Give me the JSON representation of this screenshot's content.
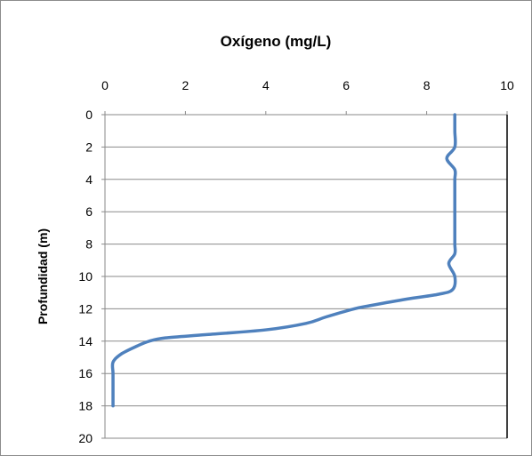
{
  "chart_data": {
    "type": "line",
    "title": "Oxígeno (mg/L)",
    "xlabel": "",
    "ylabel": "Profundidad (m)",
    "xlim": [
      0,
      10
    ],
    "ylim": [
      0,
      20
    ],
    "y_inverted": true,
    "x_axis_position": "top",
    "x_ticks": [
      "0",
      "2",
      "4",
      "6",
      "8",
      "10"
    ],
    "y_ticks": [
      "0",
      "2",
      "4",
      "6",
      "8",
      "10",
      "12",
      "14",
      "16",
      "18",
      "20"
    ],
    "grid": "horizontal",
    "legend": "none",
    "series_color": "#4F81BD",
    "series": [
      {
        "points": [
          {
            "x": 8.7,
            "y": 0
          },
          {
            "x": 8.7,
            "y": 1
          },
          {
            "x": 8.7,
            "y": 2
          },
          {
            "x": 8.5,
            "y": 2.7
          },
          {
            "x": 8.7,
            "y": 3.4
          },
          {
            "x": 8.7,
            "y": 4
          },
          {
            "x": 8.7,
            "y": 5
          },
          {
            "x": 8.7,
            "y": 6
          },
          {
            "x": 8.7,
            "y": 7
          },
          {
            "x": 8.7,
            "y": 8
          },
          {
            "x": 8.7,
            "y": 8.6
          },
          {
            "x": 8.55,
            "y": 9.2
          },
          {
            "x": 8.7,
            "y": 10
          },
          {
            "x": 8.65,
            "y": 10.8
          },
          {
            "x": 8.3,
            "y": 11.1
          },
          {
            "x": 7.5,
            "y": 11.4
          },
          {
            "x": 6.6,
            "y": 11.8
          },
          {
            "x": 6.2,
            "y": 12.0
          },
          {
            "x": 5.5,
            "y": 12.5
          },
          {
            "x": 5.0,
            "y": 12.9
          },
          {
            "x": 4.0,
            "y": 13.3
          },
          {
            "x": 2.5,
            "y": 13.6
          },
          {
            "x": 1.5,
            "y": 13.8
          },
          {
            "x": 1.1,
            "y": 14.0
          },
          {
            "x": 0.8,
            "y": 14.3
          },
          {
            "x": 0.4,
            "y": 14.8
          },
          {
            "x": 0.2,
            "y": 15.3
          },
          {
            "x": 0.2,
            "y": 16.0
          },
          {
            "x": 0.2,
            "y": 17.0
          },
          {
            "x": 0.2,
            "y": 18.0
          }
        ]
      }
    ]
  }
}
